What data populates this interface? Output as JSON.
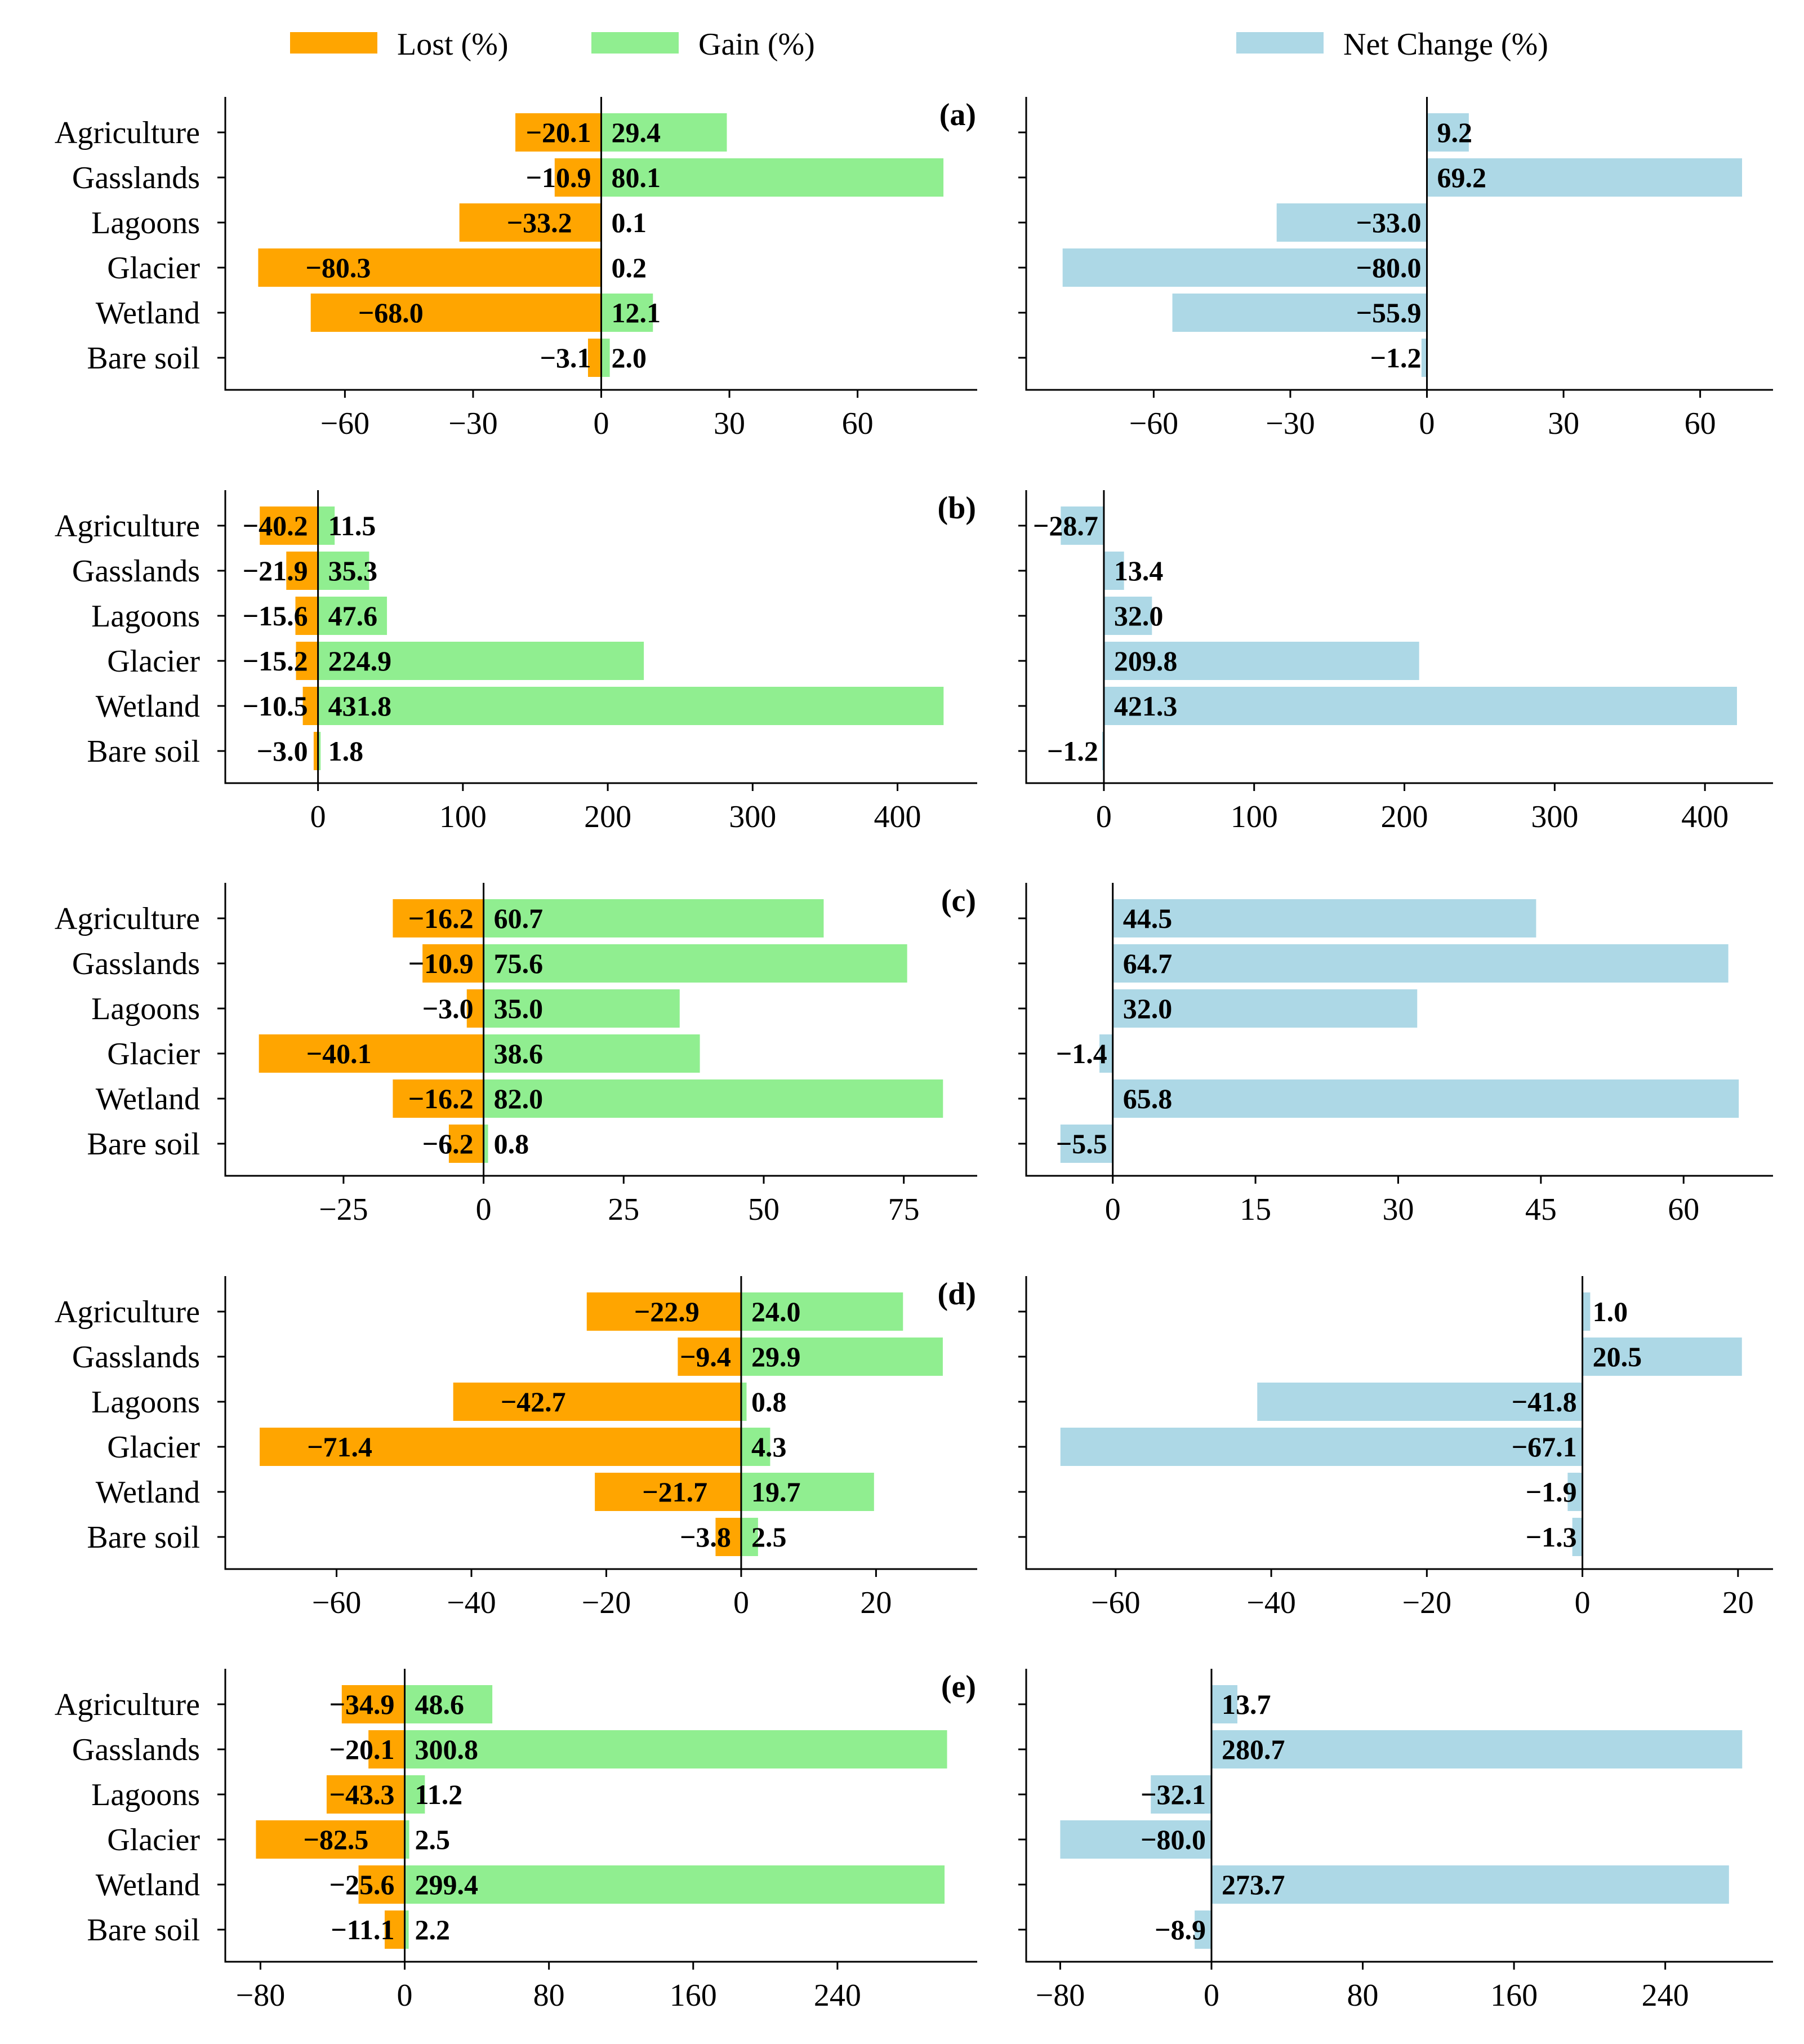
{
  "legend": [
    {
      "label": "Lost (%)",
      "color": "#FFA500"
    },
    {
      "label": "Gain (%)",
      "color": "#90EE90"
    },
    {
      "label": "Net Change (%)",
      "color": "#ADD8E6"
    }
  ],
  "colors": {
    "lost": "#FFA500",
    "gain": "#90EE90",
    "net": "#ADD8E6"
  },
  "chart_data": [
    {
      "type": "bar",
      "orientation": "horizontal",
      "panel": "(a)",
      "categories": [
        "Agriculture",
        "Gasslands",
        "Lagoons",
        "Glacier",
        "Wetland",
        "Bare soil"
      ],
      "left": {
        "series": [
          {
            "name": "Lost (%)",
            "values": [
              -20.1,
              -10.9,
              -33.2,
              -80.3,
              -68.0,
              -3.1
            ],
            "labels": [
              "−20.1",
              "−10.9",
              "−33.2",
              "−80.3",
              "−68.0",
              "−3.1"
            ]
          },
          {
            "name": "Gain (%)",
            "values": [
              29.4,
              80.1,
              0.1,
              0.2,
              12.1,
              2.0
            ],
            "labels": [
              "29.4",
              "80.1",
              "0.1",
              "0.2",
              "12.1",
              "2.0"
            ]
          }
        ],
        "xlim": [
          -88,
          88
        ],
        "xticks": [
          -60,
          -30,
          0,
          30,
          60
        ],
        "xtick_labels": [
          "−60",
          "−30",
          "0",
          "30",
          "60"
        ]
      },
      "right": {
        "series": [
          {
            "name": "Net Change (%)",
            "values": [
              9.2,
              69.2,
              -33.0,
              -80.0,
              -55.9,
              -1.2
            ],
            "labels": [
              "9.2",
              "69.2",
              "−33.0",
              "−80.0",
              "−55.9",
              "−1.2"
            ]
          }
        ],
        "xlim": [
          -88,
          76
        ],
        "xticks": [
          -60,
          -30,
          0,
          30,
          60
        ],
        "xtick_labels": [
          "−60",
          "−30",
          "0",
          "30",
          "60"
        ]
      }
    },
    {
      "type": "bar",
      "orientation": "horizontal",
      "panel": "(b)",
      "categories": [
        "Agriculture",
        "Gasslands",
        "Lagoons",
        "Glacier",
        "Wetland",
        "Bare soil"
      ],
      "left": {
        "series": [
          {
            "name": "Lost (%)",
            "values": [
              -40.2,
              -21.9,
              -15.6,
              -15.2,
              -10.5,
              -3.0
            ],
            "labels": [
              "−40.2",
              "−21.9",
              "−15.6",
              "−15.2",
              "−10.5",
              "−3.0"
            ]
          },
          {
            "name": "Gain (%)",
            "values": [
              11.5,
              35.3,
              47.6,
              224.9,
              431.8,
              1.8
            ],
            "labels": [
              "11.5",
              "35.3",
              "47.6",
              "224.9",
              "431.8",
              "1.8"
            ]
          }
        ],
        "xlim": [
          -64,
          455
        ],
        "xticks": [
          0,
          100,
          200,
          300,
          400
        ],
        "xtick_labels": [
          "0",
          "100",
          "200",
          "300",
          "400"
        ]
      },
      "right": {
        "series": [
          {
            "name": "Net Change (%)",
            "values": [
              -28.7,
              13.4,
              32.0,
              209.8,
              421.3,
              -1.2
            ],
            "labels": [
              "−28.7",
              "13.4",
              "32.0",
              "209.8",
              "421.3",
              "−1.2"
            ]
          }
        ],
        "xlim": [
          -51.7,
          445.3
        ],
        "xticks": [
          0,
          100,
          200,
          300,
          400
        ],
        "xtick_labels": [
          "0",
          "100",
          "200",
          "300",
          "400"
        ]
      }
    },
    {
      "type": "bar",
      "orientation": "horizontal",
      "panel": "(c)",
      "categories": [
        "Agriculture",
        "Gasslands",
        "Lagoons",
        "Glacier",
        "Wetland",
        "Bare soil"
      ],
      "left": {
        "series": [
          {
            "name": "Lost (%)",
            "values": [
              -16.2,
              -10.9,
              -3.0,
              -40.1,
              -16.2,
              -6.2
            ],
            "labels": [
              "−16.2",
              "−10.9",
              "−3.0",
              "−40.1",
              "−16.2",
              "−6.2"
            ]
          },
          {
            "name": "Gain (%)",
            "values": [
              60.7,
              75.6,
              35.0,
              38.6,
              82.0,
              0.8
            ],
            "labels": [
              "60.7",
              "75.6",
              "35.0",
              "38.6",
              "82.0",
              "0.8"
            ]
          }
        ],
        "xlim": [
          -46.1,
          88.1
        ],
        "xticks": [
          -25,
          0,
          25,
          50,
          75
        ],
        "xtick_labels": [
          "−25",
          "0",
          "25",
          "50",
          "75"
        ]
      },
      "right": {
        "series": [
          {
            "name": "Net Change (%)",
            "values": [
              44.5,
              64.7,
              32.0,
              -1.4,
              65.8,
              -5.5
            ],
            "labels": [
              "44.5",
              "64.7",
              "32.0",
              "−1.4",
              "65.8",
              "−5.5"
            ]
          }
        ],
        "xlim": [
          -9.1,
          69.4
        ],
        "xticks": [
          0,
          15,
          30,
          45,
          60
        ],
        "xtick_labels": [
          "0",
          "15",
          "30",
          "45",
          "60"
        ]
      }
    },
    {
      "type": "bar",
      "orientation": "horizontal",
      "panel": "(d)",
      "categories": [
        "Agriculture",
        "Gasslands",
        "Lagoons",
        "Glacier",
        "Wetland",
        "Bare soil"
      ],
      "left": {
        "series": [
          {
            "name": "Lost (%)",
            "values": [
              -22.9,
              -9.4,
              -42.7,
              -71.4,
              -21.7,
              -3.8
            ],
            "labels": [
              "−22.9",
              "−9.4",
              "−42.7",
              "−71.4",
              "−21.7",
              "−3.8"
            ]
          },
          {
            "name": "Gain (%)",
            "values": [
              24.0,
              29.9,
              0.8,
              4.3,
              19.7,
              2.5
            ],
            "labels": [
              "24.0",
              "29.9",
              "0.8",
              "4.3",
              "19.7",
              "2.5"
            ]
          }
        ],
        "xlim": [
          -76.5,
          35.0
        ],
        "xticks": [
          -60,
          -40,
          -20,
          0,
          20
        ],
        "xtick_labels": [
          "−60",
          "−40",
          "−20",
          "0",
          "20"
        ]
      },
      "right": {
        "series": [
          {
            "name": "Net Change (%)",
            "values": [
              1.0,
              20.5,
              -41.8,
              -67.1,
              -1.9,
              -1.3
            ],
            "labels": [
              "1.0",
              "20.5",
              "−41.8",
              "−67.1",
              "−1.9",
              "−1.3"
            ]
          }
        ],
        "xlim": [
          -71.5,
          24.5
        ],
        "xticks": [
          -60,
          -40,
          -20,
          0,
          20
        ],
        "xtick_labels": [
          "−60",
          "−40",
          "−20",
          "0",
          "20"
        ]
      }
    },
    {
      "type": "bar",
      "orientation": "horizontal",
      "panel": "(e)",
      "categories": [
        "Agriculture",
        "Gasslands",
        "Lagoons",
        "Glacier",
        "Wetland",
        "Bare soil"
      ],
      "left": {
        "series": [
          {
            "name": "Lost (%)",
            "values": [
              -34.9,
              -20.1,
              -43.3,
              -82.5,
              -25.6,
              -11.1
            ],
            "labels": [
              "−34.9",
              "−20.1",
              "−43.3",
              "−82.5",
              "−25.6",
              "−11.1"
            ]
          },
          {
            "name": "Gain (%)",
            "values": [
              48.6,
              300.8,
              11.2,
              2.5,
              299.4,
              2.2
            ],
            "labels": [
              "48.6",
              "300.8",
              "11.2",
              "2.5",
              "299.4",
              "2.2"
            ]
          }
        ],
        "xlim": [
          -99.5,
          317.5
        ],
        "xticks": [
          -80,
          0,
          80,
          160,
          240
        ],
        "xtick_labels": [
          "−80",
          "0",
          "80",
          "160",
          "240"
        ]
      },
      "right": {
        "series": [
          {
            "name": "Net Change (%)",
            "values": [
              13.7,
              280.7,
              -32.1,
              -80.0,
              273.7,
              -8.9
            ],
            "labels": [
              "13.7",
              "280.7",
              "−32.1",
              "−80.0",
              "273.7",
              "−8.9"
            ]
          }
        ],
        "xlim": [
          -98.0,
          297.0
        ],
        "xticks": [
          -80,
          0,
          80,
          160,
          240
        ],
        "xtick_labels": [
          "−80",
          "0",
          "80",
          "160",
          "240"
        ]
      }
    }
  ]
}
